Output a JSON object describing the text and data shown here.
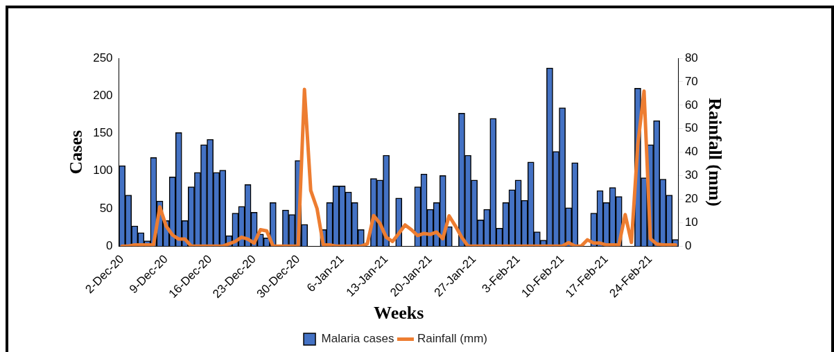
{
  "chart_data": {
    "type": "bar",
    "xlabel": "Weeks",
    "ylabel": "Cases",
    "y2label": "Rainfall (mm)",
    "categories": [
      "2-Dec-20",
      null,
      null,
      null,
      null,
      null,
      null,
      "9-Dec-20",
      null,
      null,
      null,
      null,
      null,
      null,
      "16-Dec-20",
      null,
      null,
      null,
      null,
      null,
      null,
      "23-Dec-20",
      null,
      null,
      null,
      null,
      null,
      null,
      "30-Dec-20",
      null,
      null,
      null,
      null,
      null,
      null,
      "6-Jan-21",
      null,
      null,
      null,
      null,
      null,
      null,
      "13-Jan-21",
      null,
      null,
      null,
      null,
      null,
      null,
      "20-Jan-21",
      null,
      null,
      null,
      null,
      null,
      null,
      "27-Jan-21",
      null,
      null,
      null,
      null,
      null,
      null,
      "3-Feb-21",
      null,
      null,
      null,
      null,
      null,
      null,
      "10-Feb-21",
      null,
      null,
      null,
      null,
      null,
      null,
      "17-Feb-21",
      null,
      null,
      null,
      null,
      null,
      null,
      "24-Feb-21",
      null,
      null,
      null,
      null
    ],
    "series": [
      {
        "name": "Malaria cases",
        "color": "#4472c4",
        "values": [
          107,
          68,
          27,
          18,
          7,
          118,
          60,
          34,
          92,
          151,
          34,
          79,
          98,
          135,
          142,
          98,
          101,
          14,
          44,
          53,
          82,
          45,
          16,
          11,
          58,
          0,
          48,
          42,
          114,
          29,
          0,
          0,
          22,
          58,
          80,
          80,
          72,
          58,
          22,
          0,
          90,
          88,
          121,
          0,
          64,
          0,
          0,
          79,
          96,
          49,
          58,
          94,
          26,
          0,
          177,
          121,
          88,
          35,
          49,
          170,
          24,
          58,
          75,
          88,
          61,
          112,
          19,
          8,
          237,
          126,
          184,
          51,
          111,
          0,
          0,
          44,
          74,
          58,
          78,
          66,
          0,
          0,
          210,
          91,
          135,
          167,
          89,
          68,
          9
        ]
      },
      {
        "name": "Rainfall (mm)",
        "type": "line",
        "axis": "y2",
        "color": "#ed7d31",
        "values": [
          0,
          0,
          0.5,
          0.5,
          0.5,
          0.5,
          16.7,
          8.6,
          4.8,
          3,
          3,
          0,
          0,
          0,
          0,
          0,
          0,
          1,
          2,
          3.8,
          3,
          1.3,
          7,
          6.5,
          0,
          0,
          0,
          0,
          0,
          66.7,
          23.7,
          16,
          0.5,
          0.5,
          0,
          0,
          0,
          0,
          0,
          1,
          13,
          9.7,
          3.8,
          2,
          5.4,
          9,
          7,
          4.5,
          5.4,
          5,
          6,
          3.2,
          12.9,
          8.6,
          3.8,
          0,
          0,
          0,
          0,
          0,
          0,
          0,
          0,
          0,
          0,
          0,
          0,
          0,
          0,
          0,
          0,
          1.5,
          0,
          0,
          2.7,
          1.3,
          1.3,
          0.5,
          0.5,
          0.5,
          13.4,
          1.6,
          43,
          66,
          3.2,
          0.9,
          0.5,
          0.5,
          0.5
        ]
      }
    ],
    "ylim": [
      0,
      250
    ],
    "yticks": [
      0,
      50,
      100,
      150,
      200,
      250
    ],
    "y2lim": [
      0,
      80
    ],
    "y2ticks": [
      0,
      10,
      20,
      30,
      40,
      50,
      60,
      70,
      80
    ],
    "legend": "bottom"
  }
}
